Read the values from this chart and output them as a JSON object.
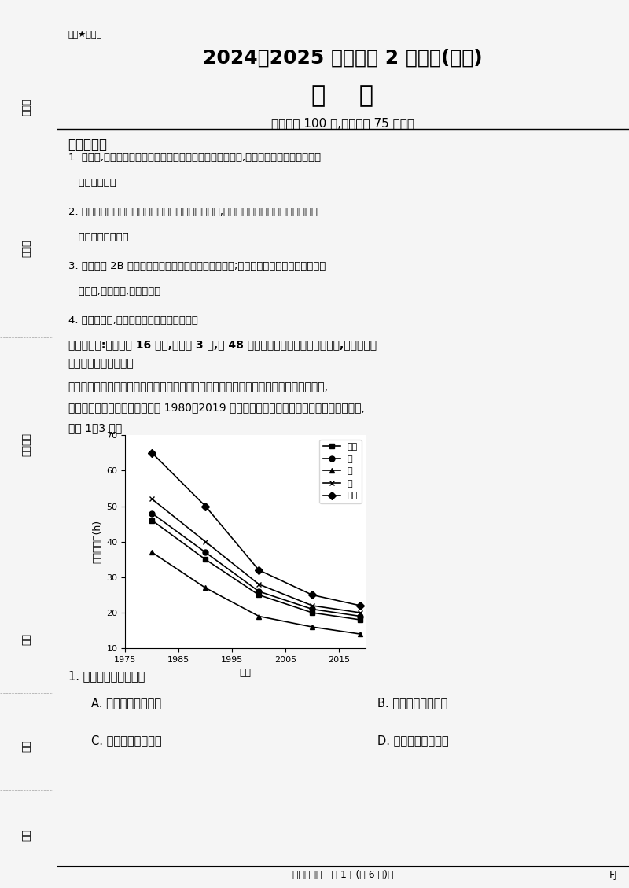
{
  "title1": "绝密★启用前",
  "title2": "2024～2025 学年高三 2 月测评(福建)",
  "title3": "地    理",
  "subtitle": "全卷满分 100 分,考试时间 75 分钟。",
  "notice_title": "注意事项：",
  "notices": [
    "1. 答题前,先将自己的姓名、准考证号填写在试卷和答题卡上,并将条形码粘贴在答题卡上\n   的指定位置。",
    "2. 请按题号顺序在答题卡上各题目的答题区域内作答,写在试卷、草稿纸和答题卡上的非\n   答题区域均无效。",
    "3. 选择题用 2B 铅笔在答题卡上把所选答案的标号涂黑;非选择题用黑色签字笔在答题卡\n   上作答;字体工整,笔迹清楚。",
    "4. 考试结束后,请将试卷和答题卡一并上交。"
  ],
  "section1_title": "一、选择题:本大题共 16 小题,每小题 3 分,共 48 分。在每小题给出的四个选项中,只有一个选",
  "section1_sub": "项是符合题目要求的。",
  "para1": "某团队用到达全国主要大城市的平均时间测算各城市在国内公路交通网络中的地理可达性,",
  "para2": "得到成果如下图所示。下图示意 1980～2019 年全国和四大地区地理可达性变化趋势。读图,",
  "para3": "完成 1～3 题。",
  "chart": {
    "years": [
      1980,
      1990,
      2000,
      2010,
      2019
    ],
    "xlabel": "年份",
    "ylabel": "地理可达性(h)",
    "ylim": [
      10,
      70
    ],
    "yticks": [
      10,
      20,
      30,
      40,
      50,
      60,
      70
    ],
    "xticks": [
      1975,
      1985,
      1995,
      2005,
      2015
    ],
    "xticklabels": [
      "1975",
      "1985",
      "1995",
      "2005",
      "2015"
    ],
    "series": {
      "全国": {
        "values": [
          46,
          35,
          25,
          20,
          18
        ],
        "marker": "s",
        "color": "#000000"
      },
      "甲": {
        "values": [
          48,
          37,
          26,
          21,
          19
        ],
        "marker": "o",
        "color": "#000000"
      },
      "乙": {
        "values": [
          37,
          27,
          19,
          16,
          14
        ],
        "marker": "^",
        "color": "#000000"
      },
      "丙": {
        "values": [
          52,
          40,
          28,
          22,
          20
        ],
        "marker": "x",
        "color": "#000000"
      },
      "东北": {
        "values": [
          65,
          50,
          32,
          25,
          22
        ],
        "marker": "D",
        "color": "#000000"
      }
    },
    "legend_order": [
      "全国",
      "甲",
      "乙",
      "丙",
      "东北"
    ]
  },
  "q1_text": "1. 甲、乙、丙分别代表",
  "q1_options": [
    [
      "A. 东部、中部、西部",
      "B. 中部、东部、西部"
    ],
    [
      "C. 西部、中部、东部",
      "D. 中部、西部、东部"
    ]
  ],
  "footer": "【高三地理   第 1 页(共 6 页)】",
  "footer_right": "FJ",
  "left_labels": [
    "座位号",
    "考场号",
    "准考证号",
    "姓名",
    "班级",
    "学校"
  ],
  "bg_color": "#f5f5f5",
  "paper_color": "#ffffff"
}
